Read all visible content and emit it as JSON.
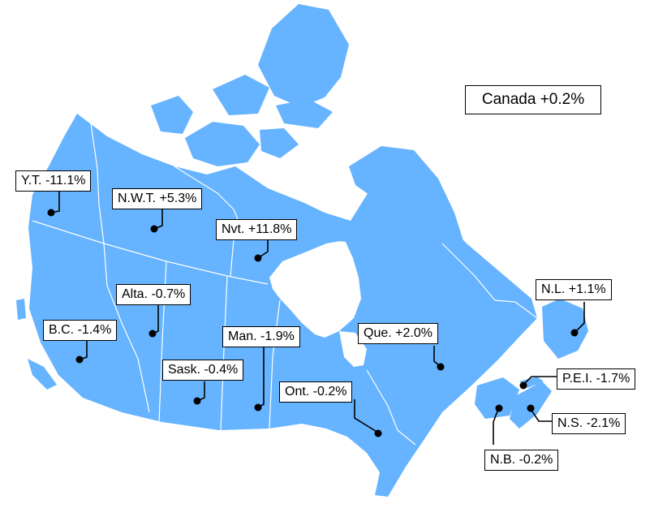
{
  "colors": {
    "land": "#66b3ff",
    "border": "#ffffff",
    "marker": "#000000"
  },
  "total": {
    "label": "Canada +0.2%"
  },
  "regions": {
    "yt": {
      "label": "Y.T. -11.1%"
    },
    "nwt": {
      "label": "N.W.T. +5.3%"
    },
    "nvt": {
      "label": "Nvt. +11.8%"
    },
    "alta": {
      "label": "Alta. -0.7%"
    },
    "bc": {
      "label": "B.C. -1.4%"
    },
    "sask": {
      "label": "Sask. -0.4%"
    },
    "man": {
      "label": "Man. -1.9%"
    },
    "ont": {
      "label": "Ont. -0.2%"
    },
    "que": {
      "label": "Que. +2.0%"
    },
    "nl": {
      "label": "N.L. +1.1%"
    },
    "pei": {
      "label": "P.E.I. -1.7%"
    },
    "ns": {
      "label": "N.S. -2.1%"
    },
    "nb": {
      "label": "N.B. -0.2%"
    }
  }
}
